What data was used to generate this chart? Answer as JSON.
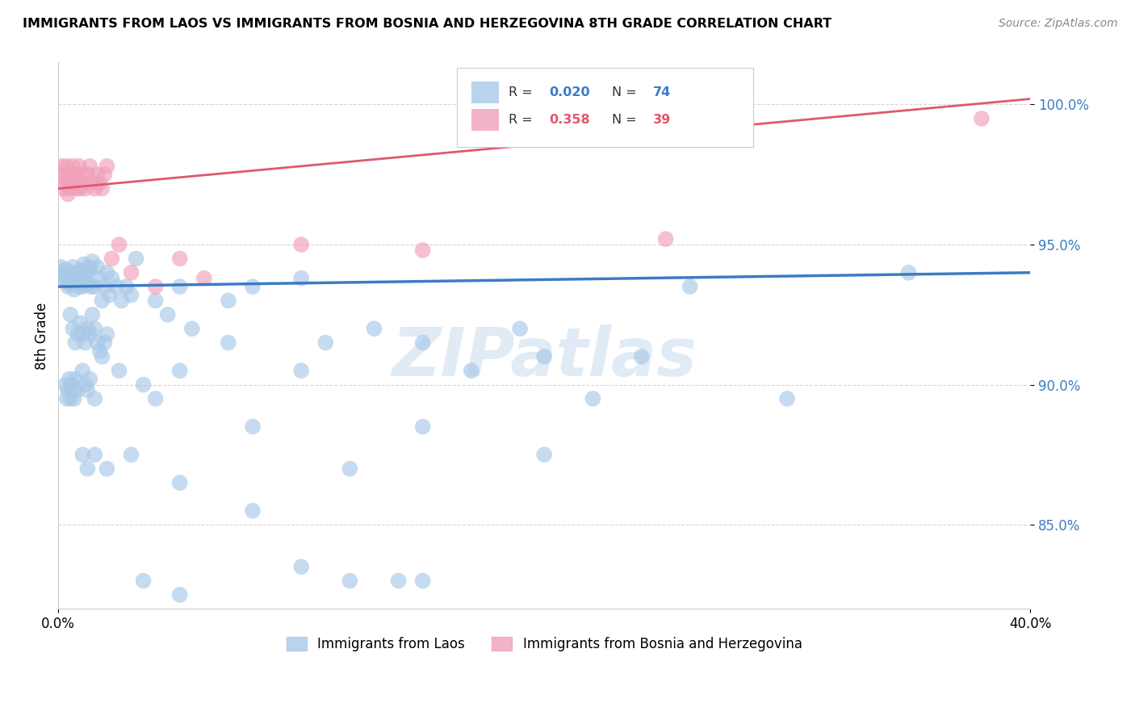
{
  "title": "IMMIGRANTS FROM LAOS VS IMMIGRANTS FROM BOSNIA AND HERZEGOVINA 8TH GRADE CORRELATION CHART",
  "source": "Source: ZipAtlas.com",
  "ylabel": "8th Grade",
  "xlim": [
    0.0,
    40.0
  ],
  "ylim": [
    82.0,
    101.5
  ],
  "yticks": [
    85.0,
    90.0,
    95.0,
    100.0
  ],
  "ytick_labels": [
    "85.0%",
    "90.0%",
    "95.0%",
    "100.0%"
  ],
  "xtick_labels": [
    "0.0%",
    "40.0%"
  ],
  "blue_color": "#A8C8E8",
  "pink_color": "#F0A0B8",
  "blue_line_color": "#3B7CC4",
  "pink_line_color": "#E05870",
  "watermark_color": "#C8DCF0",
  "blue_scatter_x": [
    0.1,
    0.15,
    0.2,
    0.25,
    0.3,
    0.35,
    0.4,
    0.45,
    0.5,
    0.55,
    0.6,
    0.65,
    0.7,
    0.75,
    0.8,
    0.85,
    0.9,
    0.95,
    1.0,
    1.05,
    1.1,
    1.15,
    1.2,
    1.25,
    1.3,
    1.35,
    1.4,
    1.5,
    1.6,
    1.7,
    1.8,
    1.9,
    2.0,
    2.1,
    2.2,
    2.4,
    2.6,
    2.8,
    3.0,
    3.2,
    4.0,
    4.5,
    5.0,
    5.5,
    7.0,
    8.0,
    10.0,
    11.0,
    13.0,
    15.0,
    17.0,
    19.0,
    20.0,
    22.0,
    24.0,
    26.0,
    30.0,
    35.0
  ],
  "blue_scatter_y": [
    94.2,
    94.0,
    93.8,
    93.9,
    94.1,
    93.7,
    93.5,
    93.6,
    93.8,
    94.0,
    94.2,
    93.4,
    93.6,
    94.0,
    93.8,
    93.5,
    94.1,
    93.7,
    93.5,
    94.3,
    94.0,
    93.8,
    93.6,
    94.2,
    94.1,
    93.5,
    94.4,
    93.5,
    94.2,
    93.8,
    93.0,
    93.5,
    94.0,
    93.2,
    93.8,
    93.5,
    93.0,
    93.5,
    93.2,
    94.5,
    93.0,
    92.5,
    93.5,
    92.0,
    93.0,
    93.5,
    93.8,
    91.5,
    92.0,
    91.5,
    90.5,
    92.0,
    91.0,
    89.5,
    91.0,
    93.5,
    89.5,
    94.0
  ],
  "blue_scatter_x2": [
    0.5,
    0.6,
    0.7,
    0.8,
    0.9,
    1.0,
    1.1,
    1.2,
    1.3,
    1.4,
    1.5,
    1.6,
    1.7,
    1.8,
    1.9,
    2.0
  ],
  "blue_scatter_y2": [
    92.5,
    92.0,
    91.5,
    91.8,
    92.2,
    91.8,
    91.5,
    92.0,
    91.8,
    92.5,
    92.0,
    91.5,
    91.2,
    91.0,
    91.5,
    91.8
  ],
  "blue_scatter_x3": [
    0.3,
    0.35,
    0.4,
    0.45,
    0.5,
    0.55,
    0.6,
    0.65,
    0.7,
    0.75,
    1.0,
    1.1,
    1.2,
    1.3,
    1.5,
    2.5,
    3.5,
    4.0,
    5.0,
    7.0,
    8.0,
    10.0,
    15.0,
    20.0
  ],
  "blue_scatter_y3": [
    90.0,
    89.5,
    89.8,
    90.2,
    89.5,
    90.0,
    89.8,
    89.5,
    90.2,
    89.8,
    90.5,
    90.0,
    89.8,
    90.2,
    89.5,
    90.5,
    90.0,
    89.5,
    90.5,
    91.5,
    88.5,
    90.5,
    88.5,
    87.5
  ],
  "blue_scatter_x4": [
    1.0,
    1.2,
    1.5,
    2.0,
    3.0,
    5.0,
    8.0,
    12.0,
    15.0
  ],
  "blue_scatter_y4": [
    87.5,
    87.0,
    87.5,
    87.0,
    87.5,
    86.5,
    85.5,
    87.0,
    83.0
  ],
  "blue_scatter_x5": [
    3.5,
    5.0,
    10.0,
    12.0,
    14.0
  ],
  "blue_scatter_y5": [
    83.0,
    82.5,
    83.5,
    83.0,
    83.0
  ],
  "pink_scatter_x": [
    0.1,
    0.15,
    0.2,
    0.25,
    0.3,
    0.35,
    0.4,
    0.45,
    0.5,
    0.55,
    0.6,
    0.65,
    0.7,
    0.75,
    0.8,
    0.85,
    0.9,
    0.95,
    1.0,
    1.1,
    1.2,
    1.3,
    1.4,
    1.5,
    1.6,
    1.7,
    1.8,
    1.9,
    2.0,
    2.2,
    2.5,
    3.0,
    4.0,
    5.0,
    6.0,
    10.0,
    15.0,
    25.0,
    38.0
  ],
  "pink_scatter_y": [
    97.5,
    97.8,
    97.0,
    97.2,
    97.5,
    97.8,
    96.8,
    97.0,
    97.2,
    97.5,
    97.8,
    97.2,
    97.5,
    97.0,
    97.2,
    97.8,
    97.0,
    97.5,
    97.2,
    97.0,
    97.5,
    97.8,
    97.2,
    97.0,
    97.5,
    97.2,
    97.0,
    97.5,
    97.8,
    94.5,
    95.0,
    94.0,
    93.5,
    94.5,
    93.8,
    95.0,
    94.8,
    95.2,
    99.5
  ],
  "blue_line_x0": 0.0,
  "blue_line_y0": 93.5,
  "blue_line_x1": 40.0,
  "blue_line_y1": 94.0,
  "pink_line_x0": 0.0,
  "pink_line_y0": 97.0,
  "pink_line_x1": 40.0,
  "pink_line_y1": 100.2
}
